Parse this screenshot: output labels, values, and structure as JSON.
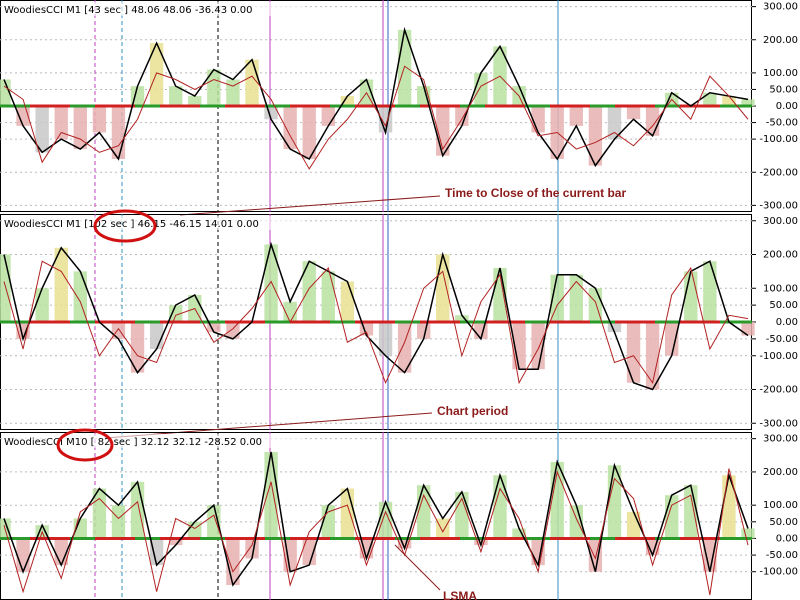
{
  "chart_data": [
    {
      "type": "line",
      "title": "WoodiesCCI M1 [43 sec ] 48.06 48.06 -36.43 0.00",
      "annotation": "Time to Close of the current bar",
      "ylim": [
        -320,
        320
      ],
      "yticks": [
        {
          "value": 300,
          "label": "300.00"
        },
        {
          "value": 200,
          "label": "200.00"
        },
        {
          "value": 100,
          "label": "100.00"
        },
        {
          "value": 50,
          "label": "50.00"
        },
        {
          "value": 0,
          "label": "0.00"
        },
        {
          "value": -50,
          "label": "-50.00"
        },
        {
          "value": -100,
          "label": "-100.00"
        },
        {
          "value": -200,
          "label": "-200.00"
        },
        {
          "value": -300,
          "label": "-300.00"
        }
      ],
      "series": [
        {
          "color": "#000000",
          "values": [
            80,
            -60,
            -140,
            -100,
            -130,
            -80,
            -160,
            60,
            190,
            60,
            30,
            110,
            80,
            140,
            -40,
            -130,
            -160,
            -60,
            30,
            80,
            -80,
            230,
            60,
            -150,
            -60,
            100,
            180,
            60,
            -80,
            -160,
            -60,
            -180,
            -100,
            -40,
            -90,
            40,
            0,
            40,
            30,
            20
          ]
        },
        {
          "color": "#b22222",
          "values": [
            60,
            20,
            -170,
            -80,
            -100,
            -140,
            -120,
            -40,
            100,
            80,
            50,
            80,
            60,
            90,
            20,
            -90,
            -190,
            -100,
            -40,
            40,
            -60,
            120,
            80,
            -130,
            -40,
            60,
            90,
            30,
            -90,
            -80,
            -130,
            -110,
            -80,
            -120,
            -60,
            20,
            -40,
            90,
            30,
            -40
          ]
        }
      ]
    },
    {
      "type": "line",
      "title": "WoodiesCCI M1 [102 sec ] 46.15 -46.15 14.01 0.00",
      "annotation": "Chart period",
      "ylim": [
        -320,
        320
      ],
      "yticks": [
        {
          "value": 300,
          "label": "300.00"
        },
        {
          "value": 200,
          "label": "200.00"
        },
        {
          "value": 100,
          "label": "100.00"
        },
        {
          "value": 50,
          "label": "50.00"
        },
        {
          "value": 0,
          "label": "0.00"
        },
        {
          "value": -50,
          "label": "-50.00"
        },
        {
          "value": -100,
          "label": "-100.00"
        },
        {
          "value": -200,
          "label": "-200.00"
        },
        {
          "value": -300,
          "label": "-300.00"
        }
      ],
      "series": [
        {
          "color": "#000000",
          "values": [
            200,
            -50,
            100,
            220,
            150,
            0,
            -50,
            -150,
            -80,
            50,
            80,
            -30,
            -50,
            0,
            230,
            60,
            180,
            150,
            120,
            -40,
            -100,
            -150,
            -50,
            200,
            20,
            -50,
            160,
            -140,
            -140,
            140,
            140,
            100,
            -30,
            -180,
            -200,
            -100,
            150,
            180,
            0,
            -40
          ]
        },
        {
          "color": "#b22222",
          "values": [
            120,
            -80,
            180,
            150,
            60,
            -100,
            -20,
            -100,
            -120,
            20,
            40,
            -60,
            -20,
            40,
            120,
            0,
            100,
            160,
            -60,
            -30,
            -180,
            -60,
            100,
            150,
            -100,
            60,
            140,
            -180,
            -80,
            50,
            120,
            60,
            -120,
            -100,
            -180,
            80,
            160,
            -80,
            20,
            10
          ]
        }
      ]
    },
    {
      "type": "line",
      "title": "WoodiesCCI M10 [ 82 sec ] 32.12 32.12 -28.52 0.00",
      "annotation": "LSMA",
      "ylim": [
        -185,
        320
      ],
      "yticks": [
        {
          "value": 300,
          "label": "300.00"
        },
        {
          "value": 200,
          "label": "200.00"
        },
        {
          "value": 100,
          "label": "100.00"
        },
        {
          "value": 50,
          "label": "50.00"
        },
        {
          "value": 0,
          "label": "0.00"
        },
        {
          "value": -50,
          "label": "-50.00"
        },
        {
          "value": -100,
          "label": "-100.00"
        }
      ],
      "series": [
        {
          "color": "#000000",
          "values": [
            60,
            -100,
            40,
            -80,
            60,
            150,
            100,
            170,
            -80,
            -20,
            50,
            100,
            -140,
            -60,
            260,
            -100,
            -80,
            100,
            150,
            -60,
            110,
            -30,
            160,
            60,
            140,
            -20,
            190,
            30,
            -80,
            230,
            100,
            -100,
            220,
            80,
            -50,
            130,
            160,
            -100,
            190,
            30
          ]
        },
        {
          "color": "#b22222",
          "values": [
            40,
            -160,
            20,
            -120,
            80,
            120,
            60,
            110,
            -160,
            60,
            30,
            70,
            -100,
            -20,
            170,
            -140,
            20,
            80,
            100,
            -80,
            80,
            -50,
            130,
            20,
            120,
            -40,
            150,
            60,
            -100,
            200,
            60,
            -60,
            180,
            120,
            -80,
            100,
            130,
            -170,
            210,
            -20
          ]
        }
      ]
    }
  ]
}
